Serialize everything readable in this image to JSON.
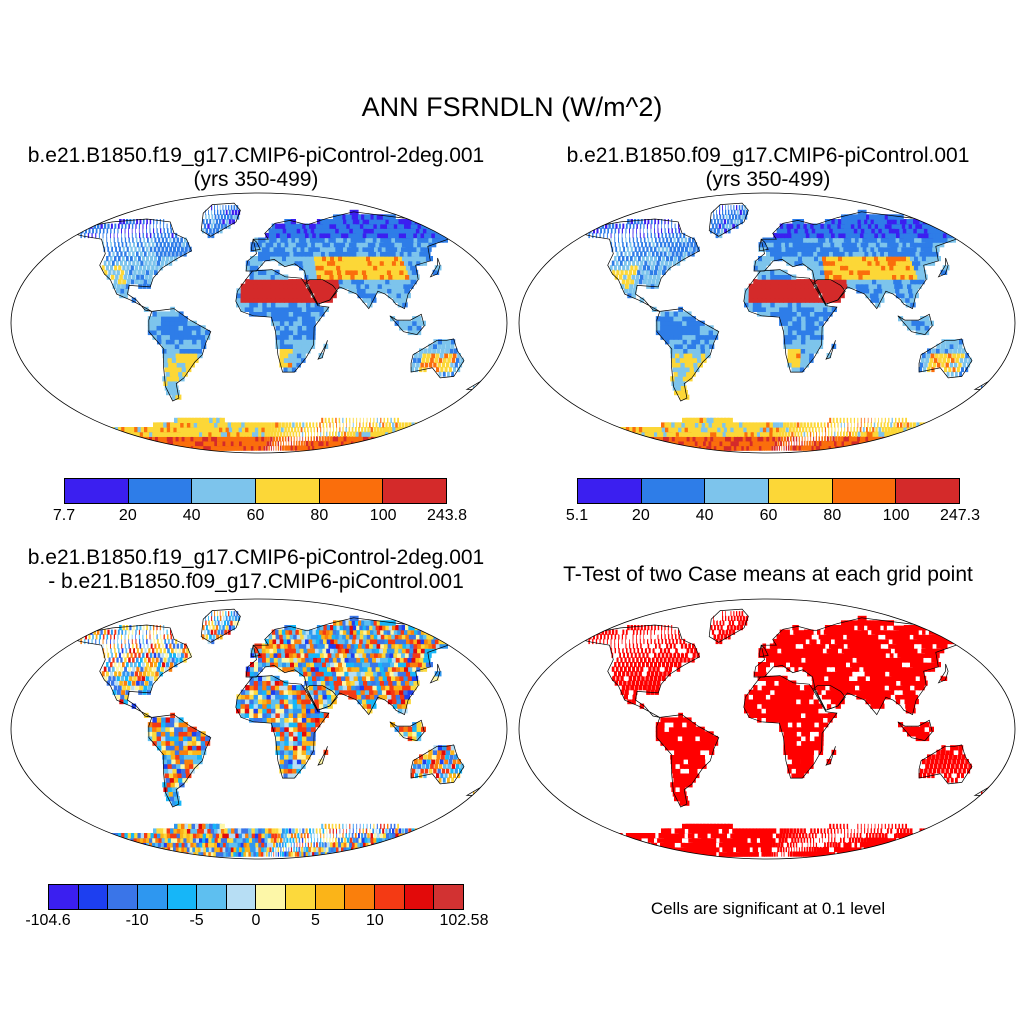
{
  "title": "ANN FSRNDLN (W/m^2)",
  "panels": [
    {
      "id": "p1",
      "title_line1": "b.e21.B1850.f19_g17.CMIP6-piControl-2deg.001",
      "title_line2": "(yrs 350-499)",
      "colorbar": {
        "colors": [
          "#3b1ff0",
          "#2e7de8",
          "#7dc4ec",
          "#fcd737",
          "#fa6e0c",
          "#d42a2a"
        ],
        "labels": [
          "7.7",
          "20",
          "40",
          "60",
          "80",
          "100",
          "243.8"
        ]
      }
    },
    {
      "id": "p2",
      "title_line1": "b.e21.B1850.f09_g17.CMIP6-piControl.001",
      "title_line2": "(yrs 350-499)",
      "colorbar": {
        "colors": [
          "#3b1ff0",
          "#2e7de8",
          "#7dc4ec",
          "#fcd737",
          "#fa6e0c",
          "#d42a2a"
        ],
        "labels": [
          "5.1",
          "20",
          "40",
          "60",
          "80",
          "100",
          "247.3"
        ]
      }
    },
    {
      "id": "p3",
      "title_line1": "b.e21.B1850.f19_g17.CMIP6-piControl-2deg.001",
      "title_line2": "- b.e21.B1850.f09_g17.CMIP6-piControl.001",
      "colorbar": {
        "colors": [
          "#3b1ff0",
          "#1d3ff0",
          "#3a75e8",
          "#2e97f0",
          "#16b6f8",
          "#5ebff0",
          "#b7def4",
          "#fdf7a8",
          "#fcd93c",
          "#fbb418",
          "#fa7f0c",
          "#f43a14",
          "#e20a0a",
          "#d23232"
        ],
        "labels": [
          "-104.6",
          "-10",
          "-5",
          "0",
          "5",
          "10",
          "102.58"
        ]
      }
    },
    {
      "id": "p4",
      "title": "T-Test of two Case means at each grid point",
      "note": "Cells are significant at 0.1 level"
    }
  ]
}
